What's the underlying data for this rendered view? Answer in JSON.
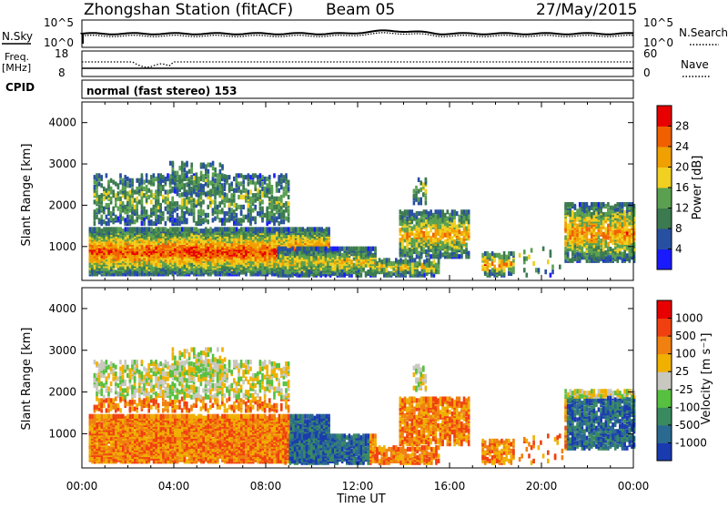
{
  "header": {
    "station": "Zhongshan Station (fitACF)",
    "beam": "Beam 05",
    "date": "27/May/2015"
  },
  "panels": {
    "nsky_label": "N.Sky",
    "nsearch_label": "N.Search",
    "freq_label_top": "Freq.",
    "freq_label_unit": "[MHz]",
    "nave_label": "Nave",
    "cpid_label": "CPID",
    "cpid_text": "normal (fast stereo) 153",
    "nsky_ticks": [
      "10^5",
      "10^0"
    ],
    "nsearch_ticks": [
      "10^5",
      "10^0"
    ],
    "freq_ticks": [
      "18",
      "8"
    ],
    "nave_ticks": [
      "60",
      "0"
    ]
  },
  "chart_data": [
    {
      "type": "heatmap",
      "name": "power",
      "ylabel": "Slant Range [km]",
      "xlabel": "",
      "ylim": [
        180,
        4500
      ],
      "yticks": [
        "4000",
        "3000",
        "2000",
        "1000"
      ],
      "colorbar_label": "Power [dB]",
      "colorbar_ticks": [
        "28",
        "24",
        "20",
        "16",
        "12",
        "8",
        "4"
      ],
      "colors": [
        "#1a1aff",
        "#2850a0",
        "#3c7a50",
        "#5aa050",
        "#f0d020",
        "#f0a000",
        "#f06000",
        "#e80000"
      ]
    },
    {
      "type": "heatmap",
      "name": "velocity",
      "ylabel": "Slant Range [km]",
      "xlabel": "Time UT",
      "ylim": [
        180,
        4500
      ],
      "yticks": [
        "4000",
        "3000",
        "2000",
        "1000"
      ],
      "xticks": [
        "00:00",
        "04:00",
        "08:00",
        "12:00",
        "16:00",
        "20:00",
        "00:00"
      ],
      "colorbar_label": "Velocity [m s⁻¹]",
      "colorbar_ticks": [
        "1000",
        "500",
        "100",
        "25",
        "-25",
        "-100",
        "-500",
        "-1000"
      ],
      "colors": [
        "#1a3ab0",
        "#2a6a90",
        "#3a8a60",
        "#58c040",
        "#c8c8c0",
        "#f0b000",
        "#f08010",
        "#f04010",
        "#e80000"
      ]
    }
  ]
}
